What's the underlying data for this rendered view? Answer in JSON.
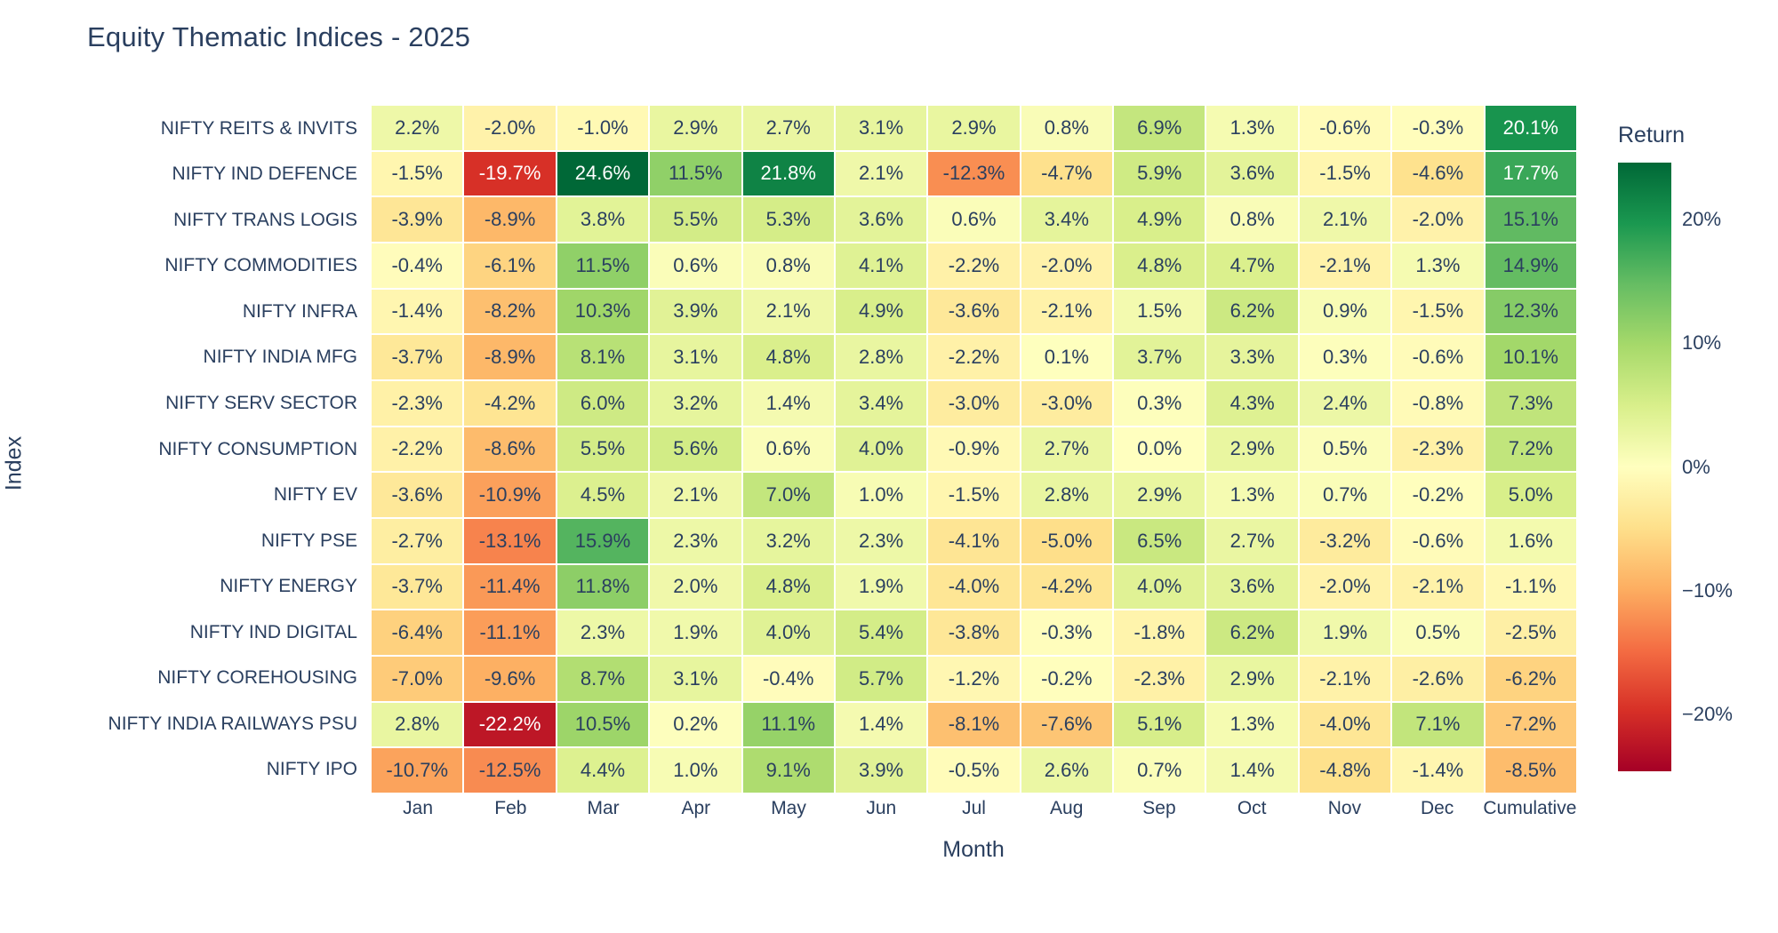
{
  "chart_data": {
    "type": "heatmap",
    "title": "Equity Thematic Indices - 2025",
    "xlabel": "Month",
    "ylabel": "Index",
    "legend_position": "right-colorbar",
    "grid": false,
    "columns": [
      "Jan",
      "Feb",
      "Mar",
      "Apr",
      "May",
      "Jun",
      "Jul",
      "Aug",
      "Sep",
      "Oct",
      "Nov",
      "Dec",
      "Cumulative"
    ],
    "rows": [
      "NIFTY REITS & INVITS",
      "NIFTY IND DEFENCE",
      "NIFTY TRANS LOGIS",
      "NIFTY COMMODITIES",
      "NIFTY INFRA",
      "NIFTY INDIA MFG",
      "NIFTY SERV SECTOR",
      "NIFTY CONSUMPTION",
      "NIFTY EV",
      "NIFTY PSE",
      "NIFTY ENERGY",
      "NIFTY IND DIGITAL",
      "NIFTY COREHOUSING",
      "NIFTY INDIA RAILWAYS PSU",
      "NIFTY IPO"
    ],
    "values": [
      [
        2.2,
        -2.0,
        -1.0,
        2.9,
        2.7,
        3.1,
        2.9,
        0.8,
        6.9,
        1.3,
        -0.6,
        -0.3,
        20.1
      ],
      [
        -1.5,
        -19.7,
        24.6,
        11.5,
        21.8,
        2.1,
        -12.3,
        -4.7,
        5.9,
        3.6,
        -1.5,
        -4.6,
        17.7
      ],
      [
        -3.9,
        -8.9,
        3.8,
        5.5,
        5.3,
        3.6,
        0.6,
        3.4,
        4.9,
        0.8,
        2.1,
        -2.0,
        15.1
      ],
      [
        -0.4,
        -6.1,
        11.5,
        0.6,
        0.8,
        4.1,
        -2.2,
        -2.0,
        4.8,
        4.7,
        -2.1,
        1.3,
        14.9
      ],
      [
        -1.4,
        -8.2,
        10.3,
        3.9,
        2.1,
        4.9,
        -3.6,
        -2.1,
        1.5,
        6.2,
        0.9,
        -1.5,
        12.3
      ],
      [
        -3.7,
        -8.9,
        8.1,
        3.1,
        4.8,
        2.8,
        -2.2,
        0.1,
        3.7,
        3.3,
        0.3,
        -0.6,
        10.1
      ],
      [
        -2.3,
        -4.2,
        6.0,
        3.2,
        1.4,
        3.4,
        -3.0,
        -3.0,
        0.3,
        4.3,
        2.4,
        -0.8,
        7.3
      ],
      [
        -2.2,
        -8.6,
        5.5,
        5.6,
        0.6,
        4.0,
        -0.9,
        2.7,
        0.0,
        2.9,
        0.5,
        -2.3,
        7.2
      ],
      [
        -3.6,
        -10.9,
        4.5,
        2.1,
        7.0,
        1.0,
        -1.5,
        2.8,
        2.9,
        1.3,
        0.7,
        -0.2,
        5.0
      ],
      [
        -2.7,
        -13.1,
        15.9,
        2.3,
        3.2,
        2.3,
        -4.1,
        -5.0,
        6.5,
        2.7,
        -3.2,
        -0.6,
        1.6
      ],
      [
        -3.7,
        -11.4,
        11.8,
        2.0,
        4.8,
        1.9,
        -4.0,
        -4.2,
        4.0,
        3.6,
        -2.0,
        -2.1,
        -1.1
      ],
      [
        -6.4,
        -11.1,
        2.3,
        1.9,
        4.0,
        5.4,
        -3.8,
        -0.3,
        -1.8,
        6.2,
        1.9,
        0.5,
        -2.5
      ],
      [
        -7.0,
        -9.6,
        8.7,
        3.1,
        -0.4,
        5.7,
        -1.2,
        -0.2,
        -2.3,
        2.9,
        -2.1,
        -2.6,
        -6.2
      ],
      [
        2.8,
        -22.2,
        10.5,
        0.2,
        11.1,
        1.4,
        -8.1,
        -7.6,
        5.1,
        1.3,
        -4.0,
        7.1,
        -7.2
      ],
      [
        -10.7,
        -12.5,
        4.4,
        1.0,
        9.1,
        3.9,
        -0.5,
        2.6,
        0.7,
        1.4,
        -4.8,
        -1.4,
        -8.5
      ]
    ],
    "value_suffix": "%",
    "zmin": -24.6,
    "zmax": 24.6,
    "colorscale_name": "RdYlGn",
    "colorscale": [
      "#a50026",
      "#d73027",
      "#f46d43",
      "#fdae61",
      "#fee08b",
      "#ffffbf",
      "#d9ef8b",
      "#a6d96a",
      "#66bd63",
      "#1a9850",
      "#006837"
    ],
    "colorbar": {
      "title": "Return",
      "ticks": [
        {
          "label": "20%",
          "value": 20
        },
        {
          "label": "10%",
          "value": 10
        },
        {
          "label": "0%",
          "value": 0
        },
        {
          "label": "−10%",
          "value": -10
        },
        {
          "label": "−20%",
          "value": -20
        }
      ]
    },
    "text_colors": {
      "dark": "#2a3f5f",
      "light": "#ffffff"
    }
  }
}
